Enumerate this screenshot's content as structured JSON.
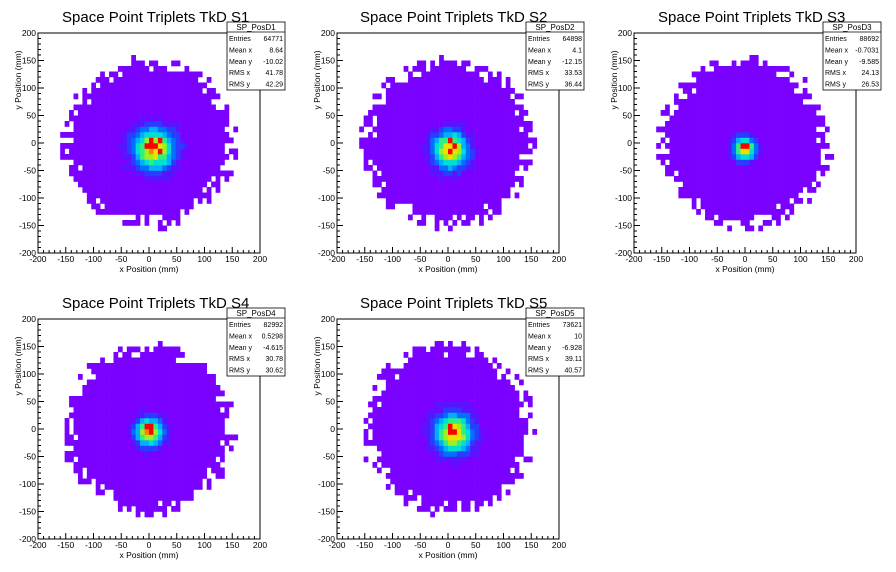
{
  "x_axis_label": "x Position (mm)",
  "y_axis_label": "y Position (mm)",
  "tick_values": [
    -200,
    -150,
    -100,
    -50,
    0,
    50,
    100,
    150,
    200
  ],
  "stat_labels": [
    "Entries",
    "Mean x",
    "Mean y",
    "RMS x",
    "RMS y"
  ],
  "palette": [
    "#7a00ff",
    "#5a12ff",
    "#2a3cff",
    "#0070ff",
    "#00b0ff",
    "#00e0d0",
    "#30f080",
    "#a0f020",
    "#f0e000",
    "#ff8000",
    "#ff0000"
  ],
  "chart_data": [
    {
      "type": "heatmap",
      "title": "Space Point Triplets TkD S1",
      "stats_name": "SP_PosD1",
      "stats": {
        "Entries": "64771",
        "Mean x": "8.64",
        "Mean y": "-10.02",
        "RMS x": "41.78",
        "RMS y": "42.29"
      },
      "xlabel": "x Position (mm)",
      "ylabel": "y Position (mm)",
      "xlim": [
        -200,
        200
      ],
      "ylim": [
        -200,
        200
      ],
      "bin_width_mm": 8,
      "footprint_radius_mm": 158,
      "core_center": [
        8.64,
        -10.02
      ],
      "core_rms": [
        28,
        28
      ],
      "peak_cells": [
        [
          0,
          -10
        ],
        [
          8,
          -10
        ],
        [
          0,
          0
        ],
        [
          16,
          0
        ],
        [
          -8,
          -10
        ],
        [
          16,
          -20
        ]
      ]
    },
    {
      "type": "heatmap",
      "title": "Space Point Triplets TkD S2",
      "stats_name": "SP_PosD2",
      "stats": {
        "Entries": "64898",
        "Mean x": "4.1",
        "Mean y": "-12.15",
        "RMS x": "33.53",
        "RMS y": "36.44"
      },
      "xlabel": "x Position (mm)",
      "ylabel": "y Position (mm)",
      "xlim": [
        -200,
        200
      ],
      "ylim": [
        -200,
        200
      ],
      "bin_width_mm": 8,
      "footprint_radius_mm": 158,
      "core_center": [
        4.1,
        -12.15
      ],
      "core_rms": [
        23,
        25
      ],
      "peak_cells": [
        [
          0,
          0
        ],
        [
          8,
          -10
        ],
        [
          0,
          -20
        ]
      ]
    },
    {
      "type": "heatmap",
      "title": "Space Point Triplets TkD S3",
      "stats_name": "SP_PosD3",
      "stats": {
        "Entries": "88692",
        "Mean x": "-0.7031",
        "Mean y": "-9.585",
        "RMS x": "24.13",
        "RMS y": "26.53"
      },
      "xlabel": "x Position (mm)",
      "ylabel": "y Position (mm)",
      "xlim": [
        -200,
        200
      ],
      "ylim": [
        -200,
        200
      ],
      "bin_width_mm": 8,
      "footprint_radius_mm": 158,
      "core_center": [
        -0.7,
        -9.6
      ],
      "core_rms": [
        15,
        16
      ],
      "peak_cells": [
        [
          0,
          -10
        ],
        [
          -8,
          -10
        ]
      ]
    },
    {
      "type": "heatmap",
      "title": "Space Point Triplets TkD S4",
      "stats_name": "SP_PosD4",
      "stats": {
        "Entries": "82992",
        "Mean x": "0.5298",
        "Mean y": "-4.615",
        "RMS x": "30.78",
        "RMS y": "30.62"
      },
      "xlabel": "x Position (mm)",
      "ylabel": "y Position (mm)",
      "xlim": [
        -200,
        200
      ],
      "ylim": [
        -200,
        200
      ],
      "bin_width_mm": 8,
      "footprint_radius_mm": 158,
      "core_center": [
        0.5,
        -4.6
      ],
      "core_rms": [
        19,
        19
      ],
      "peak_cells": [
        [
          0,
          0
        ],
        [
          -8,
          0
        ],
        [
          0,
          -10
        ]
      ]
    },
    {
      "type": "heatmap",
      "title": "Space Point Triplets TkD S5",
      "stats_name": "SP_PosD5",
      "stats": {
        "Entries": "73621",
        "Mean x": "10",
        "Mean y": "-6.928",
        "RMS x": "39.11",
        "RMS y": "40.57"
      },
      "xlabel": "x Position (mm)",
      "ylabel": "y Position (mm)",
      "xlim": [
        -200,
        200
      ],
      "ylim": [
        -200,
        200
      ],
      "bin_width_mm": 8,
      "footprint_radius_mm": 158,
      "core_center": [
        10,
        -6.9
      ],
      "core_rms": [
        25,
        27
      ],
      "peak_cells": [
        [
          0,
          0
        ],
        [
          8,
          -10
        ],
        [
          0,
          -10
        ]
      ]
    }
  ]
}
